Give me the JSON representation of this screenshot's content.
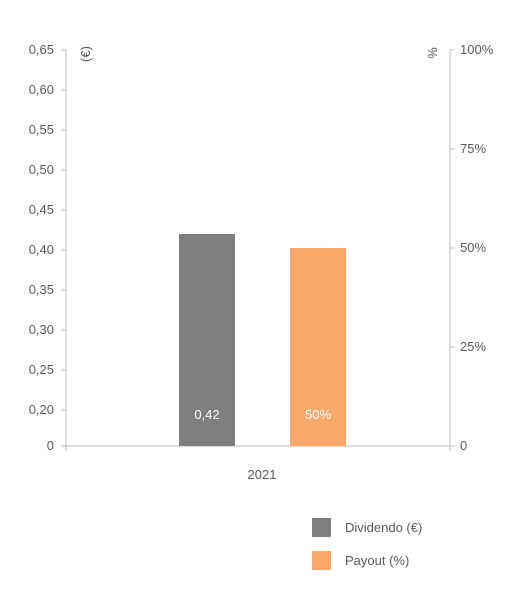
{
  "chart_data": {
    "type": "bar",
    "categories": [
      "2021"
    ],
    "series": [
      {
        "name": "Dividendo (€)",
        "values": [
          0.42
        ],
        "axis": "left",
        "color": "#7f7f7f",
        "data_label": "0,42"
      },
      {
        "name": "Payout (%)",
        "values": [
          50
        ],
        "axis": "right",
        "color": "#f9a76b",
        "data_label": "50%"
      }
    ],
    "left_axis": {
      "unit_label": "(€)",
      "ticks": [
        "0",
        "0,20",
        "0,25",
        "0,30",
        "0,35",
        "0,40",
        "0,45",
        "0,50",
        "0,55",
        "0,60",
        "0,65"
      ],
      "tick_values": [
        0,
        0.2,
        0.25,
        0.3,
        0.35,
        0.4,
        0.45,
        0.5,
        0.55,
        0.6,
        0.65
      ]
    },
    "right_axis": {
      "unit_label": "%",
      "ticks": [
        "0",
        "25%",
        "50%",
        "75%",
        "100%"
      ],
      "tick_values": [
        0,
        25,
        50,
        75,
        100
      ],
      "ylim": [
        0,
        100
      ]
    },
    "grid": false,
    "legend_position": "bottom-right"
  }
}
